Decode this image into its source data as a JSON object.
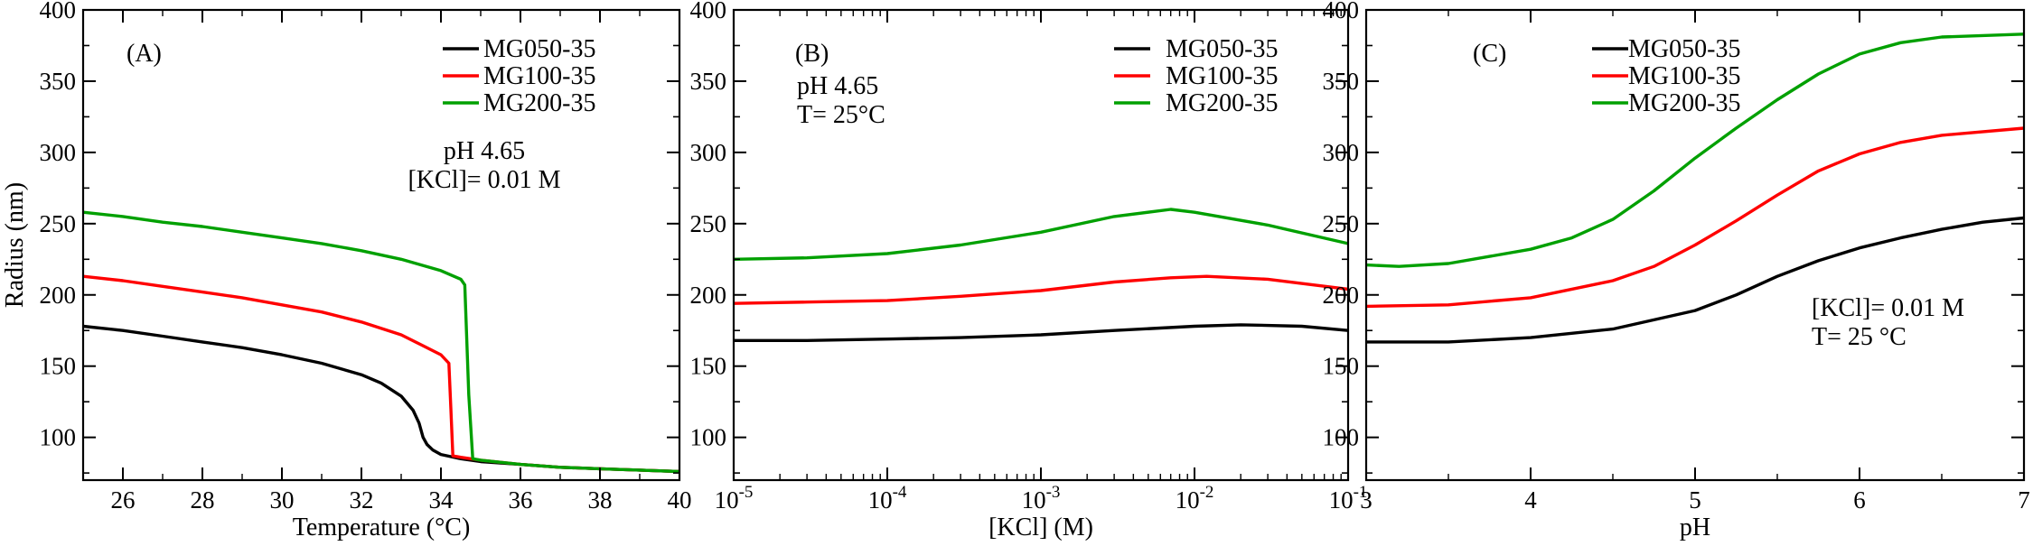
{
  "chart_data": [
    {
      "type": "line",
      "panel_label": "(A)",
      "xlabel": "Temperature (°C)",
      "ylabel": "Radius (nm)",
      "xscale": "linear",
      "xlim": [
        25,
        40
      ],
      "ylim": [
        70,
        400
      ],
      "xticks": [
        26,
        28,
        30,
        32,
        34,
        36,
        38,
        40
      ],
      "xtick_labels": [
        "26",
        "28",
        "30",
        "32",
        "34",
        "36",
        "38",
        "40"
      ],
      "yticks": [
        100,
        150,
        200,
        250,
        300,
        350,
        400
      ],
      "ytick_labels": [
        "100",
        "150",
        "200",
        "250",
        "300",
        "350",
        "400"
      ],
      "annotation": [
        "pH 4.65",
        "[KCl]= 0.01 M"
      ],
      "legend_position": "top-right",
      "grid": false,
      "series": [
        {
          "name": "MG050-35",
          "color": "#000000",
          "x": [
            25,
            26,
            27,
            28,
            29,
            30,
            31,
            32,
            32.5,
            33,
            33.3,
            33.45,
            33.55,
            33.65,
            33.8,
            34.0,
            34.5,
            35,
            36,
            37,
            38,
            39,
            40
          ],
          "y": [
            178,
            175,
            171,
            167,
            163,
            158,
            152,
            144,
            138,
            129,
            119,
            110,
            100,
            95,
            91,
            88,
            85,
            83,
            81,
            79,
            78,
            77,
            76
          ]
        },
        {
          "name": "MG100-35",
          "color": "#ff0000",
          "x": [
            25,
            26,
            27,
            28,
            29,
            30,
            31,
            32,
            33,
            33.5,
            34.0,
            34.2,
            34.25,
            34.3,
            34.5,
            35,
            36,
            37,
            38,
            39,
            40
          ],
          "y": [
            213,
            210,
            206,
            202,
            198,
            193,
            188,
            181,
            172,
            165,
            158,
            152,
            120,
            87,
            86,
            84,
            81,
            79,
            78,
            77,
            76
          ]
        },
        {
          "name": "MG200-35",
          "color": "#00a000",
          "x": [
            25,
            26,
            27,
            28,
            29,
            30,
            31,
            32,
            33,
            34,
            34.5,
            34.6,
            34.7,
            34.8,
            35,
            36,
            37,
            38,
            39,
            40
          ],
          "y": [
            258,
            255,
            251,
            248,
            244,
            240,
            236,
            231,
            225,
            217,
            211,
            207,
            130,
            85,
            84,
            81,
            79,
            78,
            77,
            76
          ]
        }
      ]
    },
    {
      "type": "line",
      "panel_label": "(B)",
      "xlabel": "[KCl] (M)",
      "xscale": "log",
      "xlim": [
        1e-05,
        0.1
      ],
      "ylim": [
        70,
        400
      ],
      "xticks": [
        1e-05,
        0.0001,
        0.001,
        0.01,
        0.1
      ],
      "xtick_labels": [
        [
          "10",
          "-5"
        ],
        [
          "10",
          "-4"
        ],
        [
          "10",
          "-3"
        ],
        [
          "10",
          "-2"
        ],
        [
          "10",
          "-1"
        ]
      ],
      "yticks": [
        100,
        150,
        200,
        250,
        300,
        350,
        400
      ],
      "ytick_labels": [
        "100",
        "150",
        "200",
        "250",
        "300",
        "350",
        "400"
      ],
      "annotation": [
        "pH 4.65",
        "T= 25°C"
      ],
      "legend_position": "top-right",
      "grid": false,
      "series": [
        {
          "name": "MG050-35",
          "color": "#000000",
          "x": [
            1e-05,
            3e-05,
            0.0001,
            0.0003,
            0.001,
            0.003,
            0.01,
            0.02,
            0.05,
            0.1
          ],
          "y": [
            168,
            168,
            169,
            170,
            172,
            175,
            178,
            179,
            178,
            175
          ]
        },
        {
          "name": "MG100-35",
          "color": "#ff0000",
          "x": [
            1e-05,
            3e-05,
            0.0001,
            0.0003,
            0.001,
            0.003,
            0.007,
            0.012,
            0.03,
            0.1
          ],
          "y": [
            194,
            195,
            196,
            199,
            203,
            209,
            212,
            213,
            211,
            204
          ]
        },
        {
          "name": "MG200-35",
          "color": "#00a000",
          "x": [
            1e-05,
            3e-05,
            0.0001,
            0.0003,
            0.001,
            0.003,
            0.007,
            0.01,
            0.03,
            0.1
          ],
          "y": [
            225,
            226,
            229,
            235,
            244,
            255,
            260,
            258,
            249,
            236
          ]
        }
      ]
    },
    {
      "type": "line",
      "panel_label": "(C)",
      "xlabel": "pH",
      "xscale": "linear",
      "xlim": [
        3,
        7
      ],
      "ylim": [
        70,
        400
      ],
      "xticks": [
        3,
        4,
        5,
        6,
        7
      ],
      "xtick_labels": [
        "3",
        "4",
        "5",
        "6",
        "7"
      ],
      "yticks": [
        100,
        150,
        200,
        250,
        300,
        350,
        400
      ],
      "ytick_labels": [
        "100",
        "150",
        "200",
        "250",
        "300",
        "350",
        "400"
      ],
      "annotation": [
        "[KCl]= 0.01 M",
        "T= 25 °C"
      ],
      "legend_position": "top-left",
      "grid": false,
      "series": [
        {
          "name": "MG050-35",
          "color": "#000000",
          "x": [
            3.0,
            3.5,
            4.0,
            4.5,
            5.0,
            5.25,
            5.5,
            5.75,
            6.0,
            6.25,
            6.5,
            6.75,
            7.0
          ],
          "y": [
            167,
            167,
            170,
            176,
            189,
            200,
            213,
            224,
            233,
            240,
            246,
            251,
            254
          ]
        },
        {
          "name": "MG100-35",
          "color": "#ff0000",
          "x": [
            3.0,
            3.5,
            4.0,
            4.5,
            4.75,
            5.0,
            5.25,
            5.5,
            5.75,
            6.0,
            6.25,
            6.5,
            7.0
          ],
          "y": [
            192,
            193,
            198,
            210,
            220,
            235,
            252,
            270,
            287,
            299,
            307,
            312,
            317
          ]
        },
        {
          "name": "MG200-35",
          "color": "#00a000",
          "x": [
            3.0,
            3.2,
            3.5,
            4.0,
            4.25,
            4.5,
            4.75,
            5.0,
            5.25,
            5.5,
            5.75,
            6.0,
            6.25,
            6.5,
            7.0
          ],
          "y": [
            221,
            220,
            222,
            232,
            240,
            253,
            273,
            296,
            317,
            337,
            355,
            369,
            377,
            381,
            383
          ]
        }
      ]
    }
  ]
}
